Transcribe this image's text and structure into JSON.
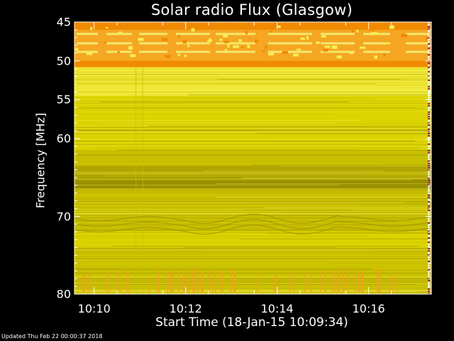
{
  "chart_data": {
    "type": "heatmap",
    "title": "Solar radio Flux (Glasgow)",
    "xlabel": "Start Time (18-Jan-15 10:09:34)",
    "ylabel": "Frequency [MHz]",
    "x_tick_labels": [
      "10:10",
      "10:12",
      "10:14",
      "10:16"
    ],
    "x_tick_minutes": [
      10.0,
      12.0,
      14.0,
      16.0
    ],
    "x_range_minutes": [
      9.57,
      17.37
    ],
    "ylim": [
      45,
      80
    ],
    "y_inverted": true,
    "y_tick_labels": [
      "45",
      "50",
      "55",
      "60",
      "70",
      "80"
    ],
    "y_ticks": [
      45,
      50,
      55,
      60,
      70,
      80
    ],
    "colormap": [
      "#998f00",
      "#b0a500",
      "#c8bf00",
      "#dcd400",
      "#efe83a",
      "#f6ef4e",
      "#f5a623",
      "#f08a00"
    ],
    "bands": [
      {
        "f0": 45.0,
        "f1": 46.0,
        "level": 7
      },
      {
        "f0": 46.0,
        "f1": 48.5,
        "level": 6
      },
      {
        "f0": 48.5,
        "f1": 50.0,
        "level": 6
      },
      {
        "f0": 50.0,
        "f1": 50.8,
        "level": 7
      },
      {
        "f0": 50.8,
        "f1": 51.8,
        "level": 4
      },
      {
        "f0": 51.8,
        "f1": 54.5,
        "level": 4
      },
      {
        "f0": 54.5,
        "f1": 57.0,
        "level": 3
      },
      {
        "f0": 57.0,
        "f1": 61.5,
        "level": 3
      },
      {
        "f0": 61.5,
        "f1": 63.5,
        "level": 2
      },
      {
        "f0": 63.5,
        "f1": 65.0,
        "level": 1
      },
      {
        "f0": 65.0,
        "f1": 66.5,
        "level": 0
      },
      {
        "f0": 66.5,
        "f1": 69.0,
        "level": 2
      },
      {
        "f0": 69.0,
        "f1": 72.0,
        "level": 2
      },
      {
        "f0": 72.0,
        "f1": 74.0,
        "level": 3
      },
      {
        "f0": 74.0,
        "f1": 76.5,
        "level": 2
      },
      {
        "f0": 76.5,
        "f1": 80.0,
        "level": 2
      }
    ]
  },
  "footer": "Updated Thu Feb 22 00:00:37 2018"
}
